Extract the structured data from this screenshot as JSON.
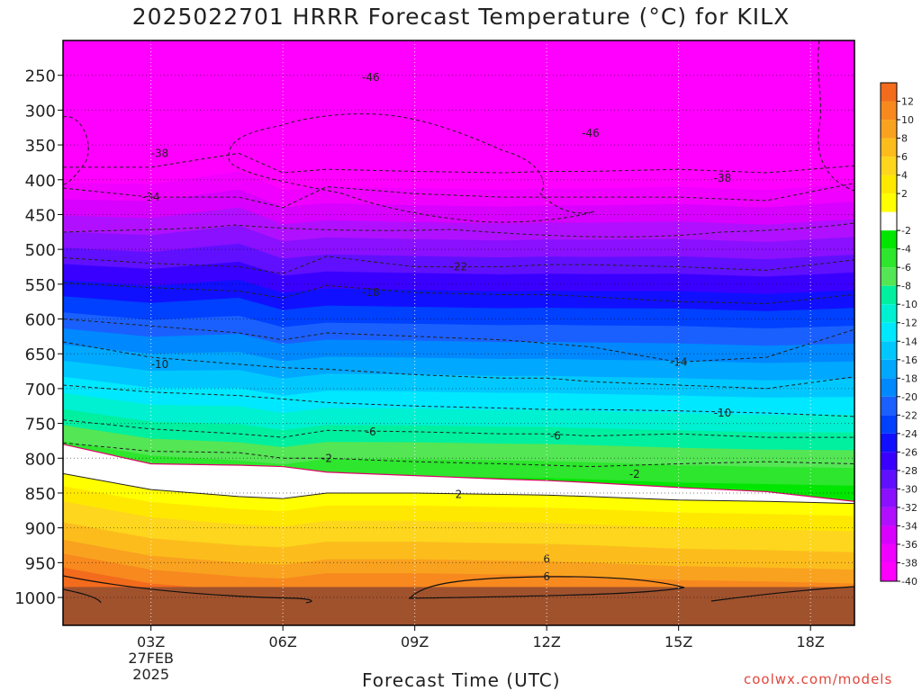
{
  "chart_data": {
    "type": "heatmap",
    "title": "2025022701 HRRR Forecast Temperature (°C) for KILX",
    "xlabel": "Forecast Time (UTC)",
    "ylabel": "",
    "credit": "coolwx.com/models",
    "x_axis": {
      "range_hours": [
        1,
        19
      ],
      "ticks": [
        {
          "hour": 3,
          "label": "03Z"
        },
        {
          "hour": 6,
          "label": "06Z"
        },
        {
          "hour": 9,
          "label": "09Z"
        },
        {
          "hour": 12,
          "label": "12Z"
        },
        {
          "hour": 15,
          "label": "15Z"
        },
        {
          "hour": 18,
          "label": "18Z"
        }
      ],
      "date_label": [
        "27FEB",
        "2025"
      ]
    },
    "y_axis": {
      "units": "hPa",
      "range": [
        1040,
        200
      ],
      "ticks": [
        250,
        300,
        350,
        400,
        450,
        500,
        550,
        600,
        650,
        700,
        750,
        800,
        850,
        900,
        950,
        1000
      ]
    },
    "colorbar": {
      "labels": [
        "12",
        "10",
        "8",
        "6",
        "4",
        "2",
        "-2",
        "-4",
        "-6",
        "-8",
        "-10",
        "-12",
        "-14",
        "-16",
        "-18",
        "-20",
        "-22",
        "-24",
        "-26",
        "-28",
        "-30",
        "-32",
        "-34",
        "-36",
        "-38",
        "-40"
      ],
      "colors": [
        "#f36b1c",
        "#f7891f",
        "#f9a21f",
        "#fcbd1c",
        "#fdd61d",
        "#ffe800",
        "#ffff00",
        "#ffffff",
        "#00e600",
        "#2de62d",
        "#54e654",
        "#00f0a0",
        "#00f0d2",
        "#00e8ff",
        "#00c8ff",
        "#00a8ff",
        "#0088ff",
        "#1a60ff",
        "#0040ff",
        "#1010ff",
        "#3a00ff",
        "#6010ff",
        "#8a10ff",
        "#b010ff",
        "#d800ff",
        "#f000ff",
        "#ff00ff"
      ]
    },
    "surface_color": "#a0522d",
    "background_color": "#ff00ff",
    "isotherm_hours": [
      1,
      3,
      5,
      6,
      7,
      9,
      11,
      12,
      13,
      15,
      17,
      19
    ],
    "isotherms": [
      {
        "temp": -38,
        "label": "-38",
        "label_hour": 3.2,
        "p": [
          382,
          382,
          362,
          390,
          385,
          388,
          390,
          388,
          388,
          385,
          390,
          380
        ]
      },
      {
        "temp": -34,
        "label": "-34",
        "label_hour": 3.0,
        "p": [
          412,
          425,
          425,
          440,
          410,
          420,
          425,
          425,
          425,
          425,
          430,
          405
        ]
      },
      {
        "temp": -22,
        "label": "-22",
        "label_hour": 10.0,
        "p": [
          512,
          520,
          525,
          535,
          510,
          525,
          525,
          522,
          522,
          525,
          530,
          515
        ]
      },
      {
        "temp": -18,
        "label": "-18",
        "label_hour": 8.0,
        "p": [
          548,
          555,
          560,
          570,
          552,
          562,
          565,
          565,
          568,
          575,
          578,
          565
        ]
      },
      {
        "temp": -14,
        "label": "-14",
        "label_hour": 15.0,
        "p": [
          600,
          610,
          620,
          630,
          620,
          625,
          630,
          635,
          640,
          662,
          655,
          615
        ]
      },
      {
        "temp": -10,
        "label": "-10",
        "label_hour": 3.2,
        "p": [
          633,
          655,
          665,
          670,
          672,
          680,
          685,
          685,
          690,
          695,
          700,
          683
        ]
      },
      {
        "temp": -10,
        "label": "-10",
        "label_hour": 16.0,
        "p": [
          695,
          705,
          710,
          715,
          720,
          725,
          728,
          730,
          730,
          732,
          735,
          740
        ]
      },
      {
        "temp": -6,
        "label": "-6",
        "label_hour": 8.0,
        "p": [
          745,
          758,
          765,
          770,
          760,
          762,
          765,
          765,
          768,
          765,
          770,
          770
        ]
      },
      {
        "temp": -2,
        "label": "-2",
        "label_hour": 7.0,
        "p": [
          778,
          790,
          792,
          800,
          800,
          805,
          808,
          810,
          812,
          808,
          805,
          808
        ]
      },
      {
        "temp": 2,
        "label": "2",
        "label_hour": 10.0,
        "p": [
          822,
          845,
          855,
          858,
          850,
          850,
          852,
          853,
          855,
          860,
          862,
          865
        ]
      }
    ],
    "freezing_line": {
      "temp": 0,
      "p": [
        780,
        808,
        810,
        812,
        820,
        825,
        830,
        832,
        835,
        842,
        848,
        862
      ]
    },
    "warm_contour_6": {
      "label": "6",
      "p_top": 940,
      "p_bottom": 968,
      "hours": [
        9,
        15.2
      ]
    },
    "labels_extra": [
      {
        "text": "-46",
        "hour": 8.0,
        "p": 253
      },
      {
        "text": "-46",
        "hour": 13.0,
        "p": 333
      },
      {
        "text": "-38",
        "hour": 16.0,
        "p": 398
      },
      {
        "text": "-6",
        "hour": 12.2,
        "p": 768
      },
      {
        "text": "-2",
        "hour": 14.0,
        "p": 823
      },
      {
        "text": "6",
        "hour": 12.0,
        "p": 945
      },
      {
        "text": "6",
        "hour": 12.0,
        "p": 970
      }
    ]
  }
}
